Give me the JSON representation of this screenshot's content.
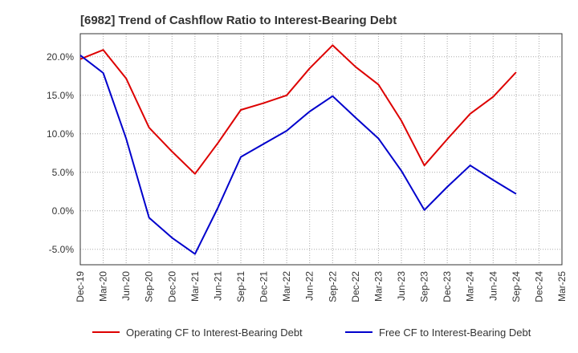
{
  "chart_data": {
    "type": "line",
    "title": "[6982]  Trend of Cashflow Ratio to Interest-Bearing Debt",
    "xlabel": "",
    "ylabel": "",
    "x": [
      "Dec-19",
      "Mar-20",
      "Jun-20",
      "Sep-20",
      "Dec-20",
      "Mar-21",
      "Jun-21",
      "Sep-21",
      "Dec-21",
      "Mar-22",
      "Jun-22",
      "Sep-22",
      "Dec-22",
      "Mar-23",
      "Jun-23",
      "Sep-23",
      "Dec-23",
      "Mar-24",
      "Jun-24",
      "Sep-24",
      "Dec-24",
      "Mar-25"
    ],
    "ylim": [
      -7,
      23
    ],
    "yticks": [
      -5,
      0,
      5,
      10,
      15,
      20
    ],
    "ytick_labels": [
      "-5.0%",
      "0.0%",
      "5.0%",
      "10.0%",
      "15.0%",
      "20.0%"
    ],
    "grid": true,
    "legend": "bottom",
    "series": [
      {
        "name": "Operating CF to Interest-Bearing Debt",
        "color": "#dd0000",
        "values": [
          19.7,
          20.9,
          17.2,
          10.8,
          7.7,
          4.8,
          8.8,
          13.1,
          14.0,
          15.0,
          18.5,
          21.5,
          18.7,
          16.4,
          11.7,
          5.9,
          9.3,
          12.6,
          14.8,
          18.0,
          null,
          null
        ]
      },
      {
        "name": "Free CF to Interest-Bearing Debt",
        "color": "#0000cc",
        "values": [
          20.2,
          17.9,
          9.4,
          -0.9,
          -3.5,
          -5.6,
          0.4,
          7.0,
          8.7,
          10.4,
          12.9,
          14.9,
          12.1,
          9.4,
          5.2,
          0.1,
          3.1,
          5.9,
          4.0,
          2.2,
          null,
          null
        ]
      }
    ]
  }
}
